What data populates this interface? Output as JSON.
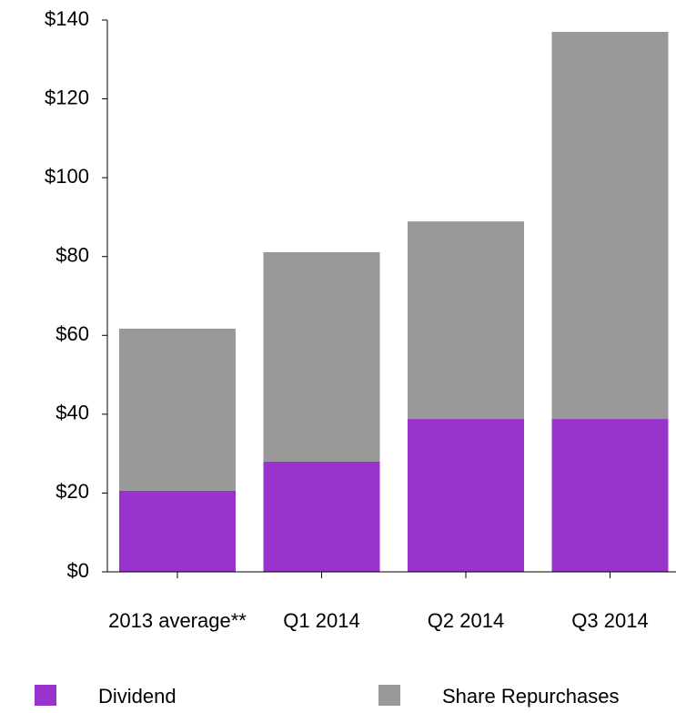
{
  "chart_data": {
    "type": "stacked_bar",
    "categories": [
      "2013 average**",
      "Q1 2014",
      "Q2 2014",
      "Q3 2014"
    ],
    "series": [
      {
        "name": "Dividend",
        "color": "#9933cc",
        "values": [
          20.6,
          28.0,
          38.8,
          38.8
        ]
      },
      {
        "name": "Share Repurchases",
        "color": "#999999",
        "values": [
          41.1,
          53.1,
          50.1,
          98.2
        ]
      }
    ],
    "ylim": [
      0,
      140
    ],
    "yticks": [
      {
        "value": 0,
        "label": "$0"
      },
      {
        "value": 20,
        "label": "$20"
      },
      {
        "value": 40,
        "label": "$40"
      },
      {
        "value": 60,
        "label": "$60"
      },
      {
        "value": 80,
        "label": "$80"
      },
      {
        "value": 100,
        "label": "$100"
      },
      {
        "value": 120,
        "label": "$120"
      },
      {
        "value": 140,
        "label": "$140"
      }
    ],
    "grid": false,
    "legend": "bottom"
  }
}
